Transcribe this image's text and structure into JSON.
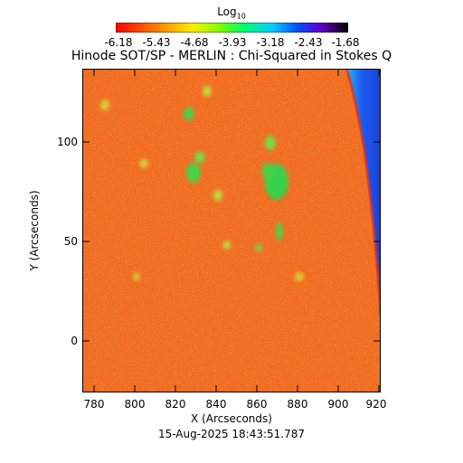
{
  "colorbar": {
    "label_main": "Log",
    "label_sub": "10",
    "ticks": [
      "-6.18",
      "-5.43",
      "-4.68",
      "-3.93",
      "-3.18",
      "-2.43",
      "-1.68"
    ]
  },
  "title": "Hinode SOT/SP - MERLIN : Chi-Squared in Stokes Q",
  "x_axis": {
    "label": "X (Arcseconds)",
    "ticks": [
      "780",
      "800",
      "820",
      "840",
      "860",
      "880",
      "900",
      "920"
    ]
  },
  "y_axis": {
    "label": "Y (Arcseconds)",
    "ticks": [
      "100",
      "50",
      "0"
    ]
  },
  "timestamp": "15-Aug-2025 18:43:51.787",
  "colors": {
    "background": "#ffffff",
    "map_base": "#f06a1c",
    "map_red": "#e0321a",
    "map_yellow": "#e6c22a",
    "map_green": "#3fd64a",
    "limb_blue": "#1d5cf0",
    "limb_cyan": "#2ab7e8"
  }
}
